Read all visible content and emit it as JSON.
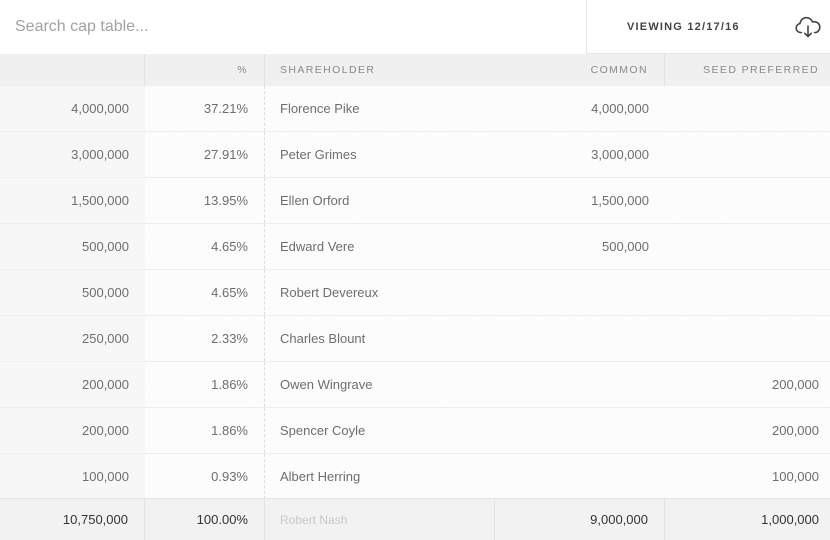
{
  "search": {
    "placeholder": "Search cap table..."
  },
  "viewing": {
    "label": "VIEWING 12/17/16"
  },
  "download": {
    "icon": "cloud-download-icon"
  },
  "columns": [
    "",
    "%",
    "SHAREHOLDER",
    "COMMON",
    "SEED PREFERRED"
  ],
  "rows": [
    {
      "total": "4,000,000",
      "percent": "37.21%",
      "shareholder": "Florence Pike",
      "common": "4,000,000",
      "seed": ""
    },
    {
      "total": "3,000,000",
      "percent": "27.91%",
      "shareholder": "Peter Grimes",
      "common": "3,000,000",
      "seed": ""
    },
    {
      "total": "1,500,000",
      "percent": "13.95%",
      "shareholder": "Ellen Orford",
      "common": "1,500,000",
      "seed": ""
    },
    {
      "total": "500,000",
      "percent": "4.65%",
      "shareholder": "Edward Vere",
      "common": "500,000",
      "seed": ""
    },
    {
      "total": "500,000",
      "percent": "4.65%",
      "shareholder": "Robert Devereux",
      "common": "",
      "seed": ""
    },
    {
      "total": "250,000",
      "percent": "2.33%",
      "shareholder": "Charles Blount",
      "common": "",
      "seed": ""
    },
    {
      "total": "200,000",
      "percent": "1.86%",
      "shareholder": "Owen Wingrave",
      "common": "",
      "seed": "200,000"
    },
    {
      "total": "200,000",
      "percent": "1.86%",
      "shareholder": "Spencer Coyle",
      "common": "",
      "seed": "200,000"
    },
    {
      "total": "100,000",
      "percent": "0.93%",
      "shareholder": "Albert Herring",
      "common": "",
      "seed": "100,000"
    }
  ],
  "footer": {
    "total": "10,750,000",
    "percent": "100.00%",
    "shareholder": "Robert Nash",
    "common": "9,000,000",
    "seed": "1,000,000"
  }
}
